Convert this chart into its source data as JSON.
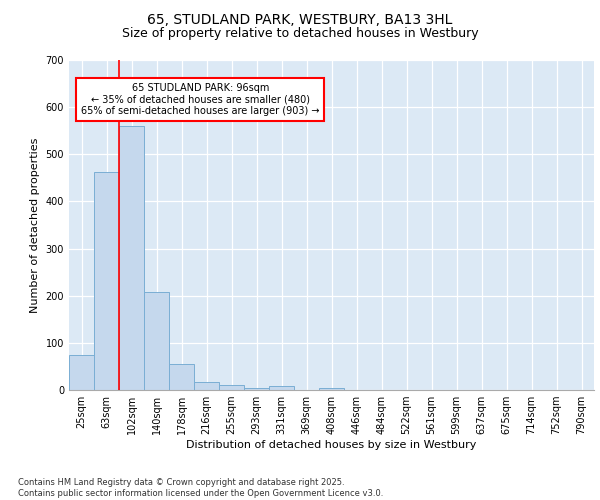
{
  "title_line1": "65, STUDLAND PARK, WESTBURY, BA13 3HL",
  "title_line2": "Size of property relative to detached houses in Westbury",
  "xlabel": "Distribution of detached houses by size in Westbury",
  "ylabel": "Number of detached properties",
  "footer": "Contains HM Land Registry data © Crown copyright and database right 2025.\nContains public sector information licensed under the Open Government Licence v3.0.",
  "categories": [
    "25sqm",
    "63sqm",
    "102sqm",
    "140sqm",
    "178sqm",
    "216sqm",
    "255sqm",
    "293sqm",
    "331sqm",
    "369sqm",
    "408sqm",
    "446sqm",
    "484sqm",
    "522sqm",
    "561sqm",
    "599sqm",
    "637sqm",
    "675sqm",
    "714sqm",
    "752sqm",
    "790sqm"
  ],
  "values": [
    75,
    462,
    560,
    207,
    55,
    18,
    10,
    5,
    8,
    0,
    5,
    0,
    0,
    0,
    0,
    0,
    0,
    0,
    0,
    0,
    0
  ],
  "bar_color": "#c5d8ed",
  "bar_edge_color": "#7aaed4",
  "background_color": "#dce9f5",
  "red_line_x": 1.5,
  "annotation_text": "65 STUDLAND PARK: 96sqm\n← 35% of detached houses are smaller (480)\n65% of semi-detached houses are larger (903) →",
  "annotation_box_color": "white",
  "annotation_box_edge_color": "red",
  "ylim": [
    0,
    700
  ],
  "yticks": [
    0,
    100,
    200,
    300,
    400,
    500,
    600,
    700
  ],
  "title1_fontsize": 10,
  "title2_fontsize": 9,
  "ylabel_fontsize": 8,
  "xlabel_fontsize": 8,
  "annot_fontsize": 7,
  "tick_fontsize": 7
}
